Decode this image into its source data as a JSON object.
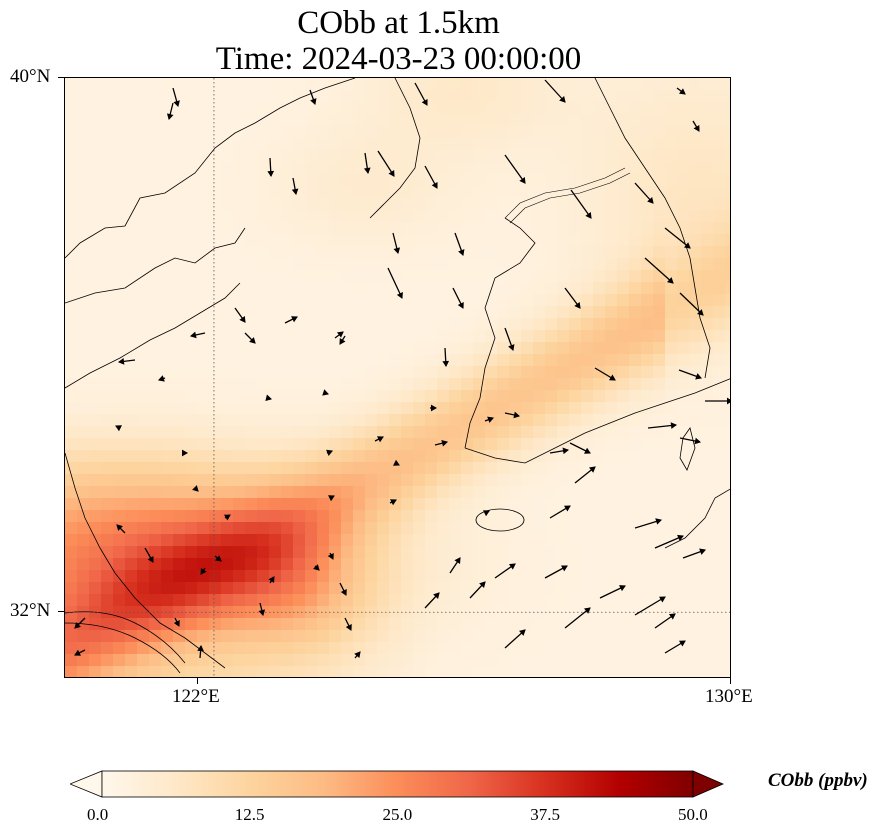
{
  "title": {
    "line1": "CObb at 1.5km",
    "line2": "Time: 2024-03-23 00:00:00"
  },
  "map": {
    "lon_range": [
      119.7,
      130.0
    ],
    "lat_range": [
      31.0,
      40.0
    ],
    "lat_labels": [
      "40°N",
      "32°N"
    ],
    "lon_labels": [
      "122°E",
      "130°E"
    ],
    "gridlines": {
      "lon": 122.0,
      "lat": 32.0,
      "style": "dotted"
    },
    "field_name": "CObb",
    "units": "ppbv",
    "colormap": [
      "#fff7ec",
      "#fee8c8",
      "#fdd49e",
      "#fdbb84",
      "#fc8d59",
      "#ef6548",
      "#d7301f",
      "#b30000",
      "#7f0000"
    ],
    "plume_description_hint": "higher concentrations over the East China Sea in the southwest, lower in the north",
    "wind_vectors_count": 80
  },
  "colorbar": {
    "title": "CObb (ppbv)",
    "min": 0.0,
    "max": 50.0,
    "tick_labels": [
      "0.0",
      "12.5",
      "25.0",
      "37.5",
      "50.0"
    ],
    "extend": "both"
  }
}
